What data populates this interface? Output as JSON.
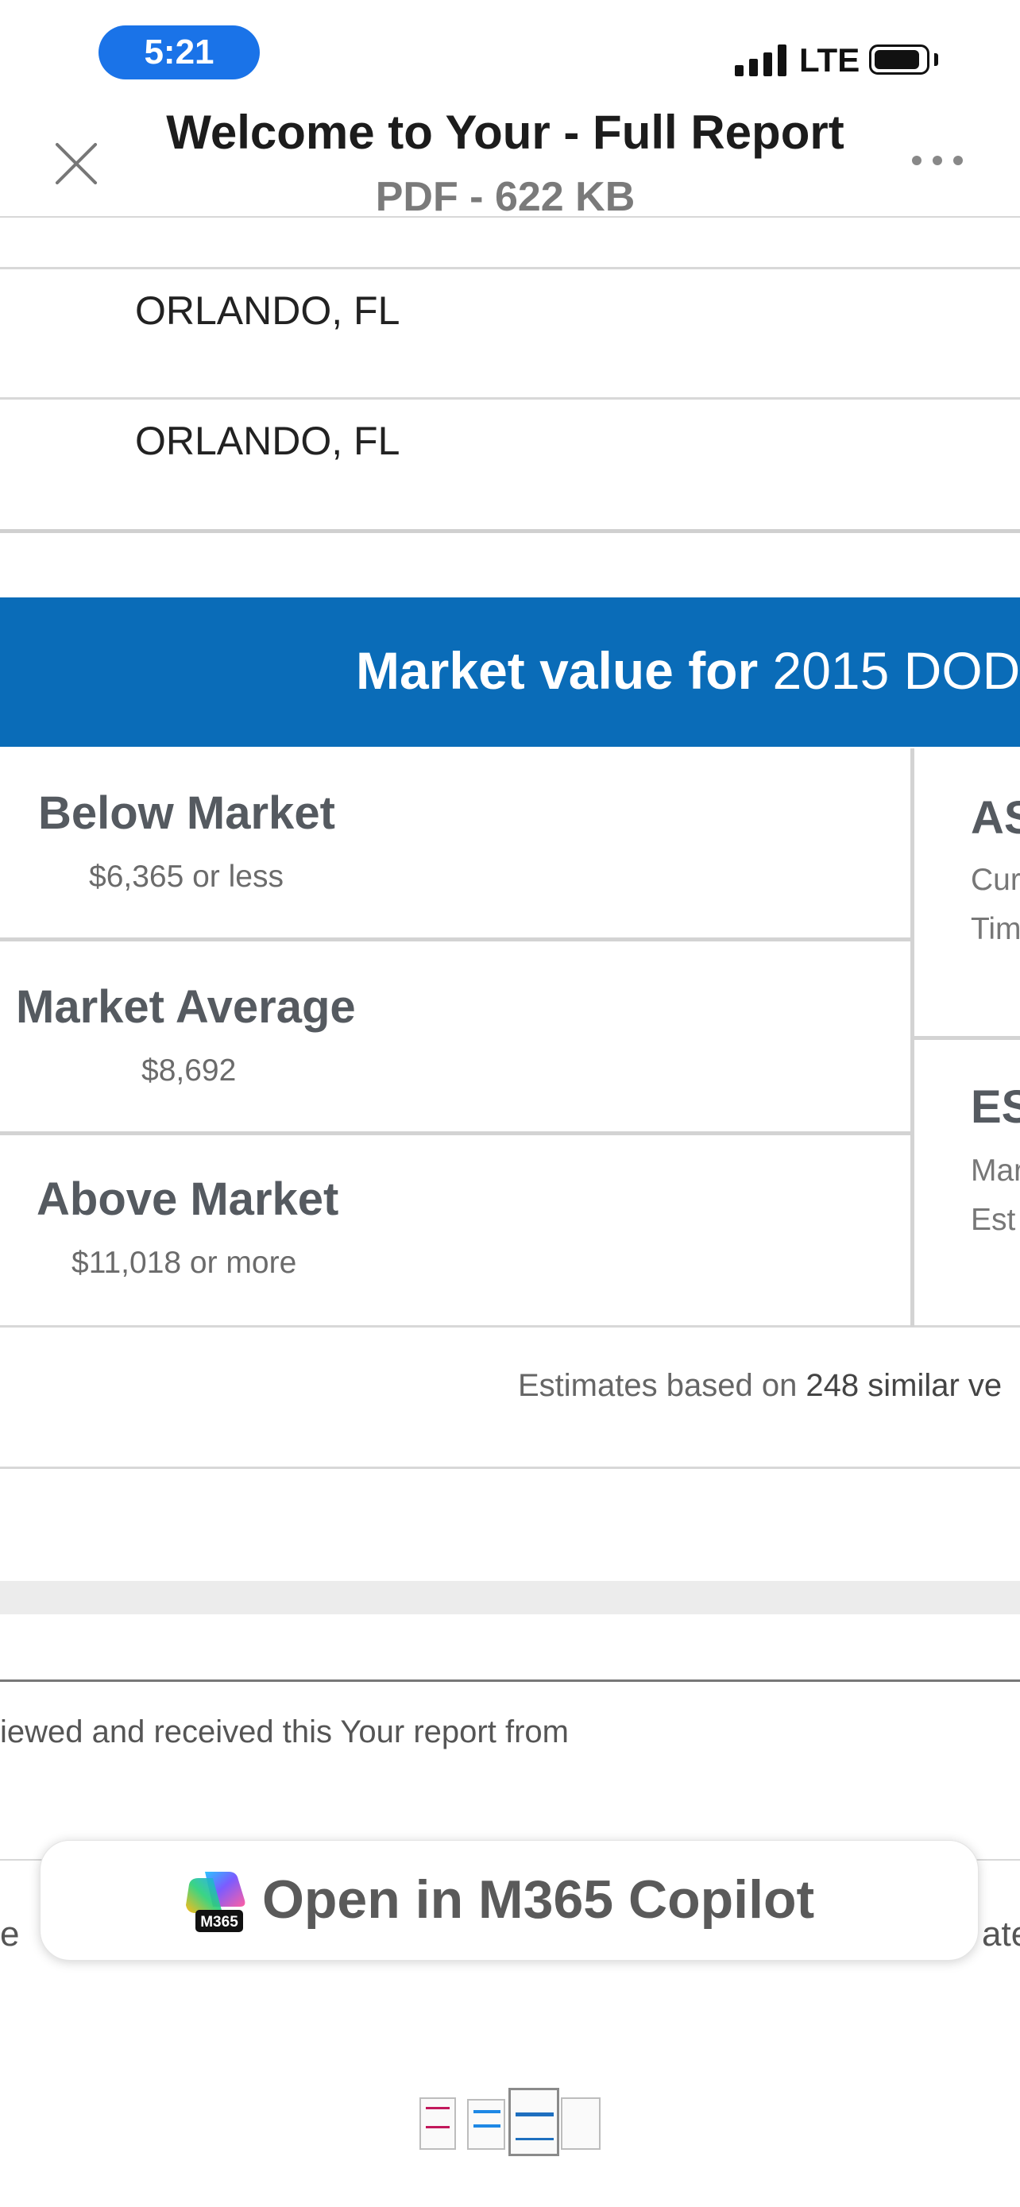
{
  "status_bar": {
    "time": "5:21",
    "network": "LTE"
  },
  "header": {
    "title": "Welcome to Your - Full Report",
    "subtitle": "PDF - 622 KB"
  },
  "locations": [
    "ORLANDO, FL",
    "ORLANDO, FL"
  ],
  "banner": {
    "bold_text": "Market value for",
    "light_text": " 2015 DOD"
  },
  "market": {
    "below": {
      "title": "Below Market",
      "value": "$6,365 or less"
    },
    "average": {
      "title": "Market Average",
      "value": "$8,692"
    },
    "above": {
      "title": "Above Market",
      "value": "$11,018 or more"
    }
  },
  "right_panel": {
    "top_title": "AS",
    "top_line1": "Cur",
    "top_line2": "Tim",
    "bottom_title": "ES",
    "bottom_line1": "Mar",
    "bottom_line2": "Est"
  },
  "estimates": {
    "prefix": "Estimates based on ",
    "bold": "248 similar ve"
  },
  "reviewed_text": "iewed and received this Your report from",
  "side_left_text": "e",
  "side_right_text": "ate",
  "copilot": {
    "label": "Open in M365 Copilot",
    "badge": "M365"
  },
  "colors": {
    "banner": "#0a6cb8",
    "status_pill": "#1a73e8"
  }
}
